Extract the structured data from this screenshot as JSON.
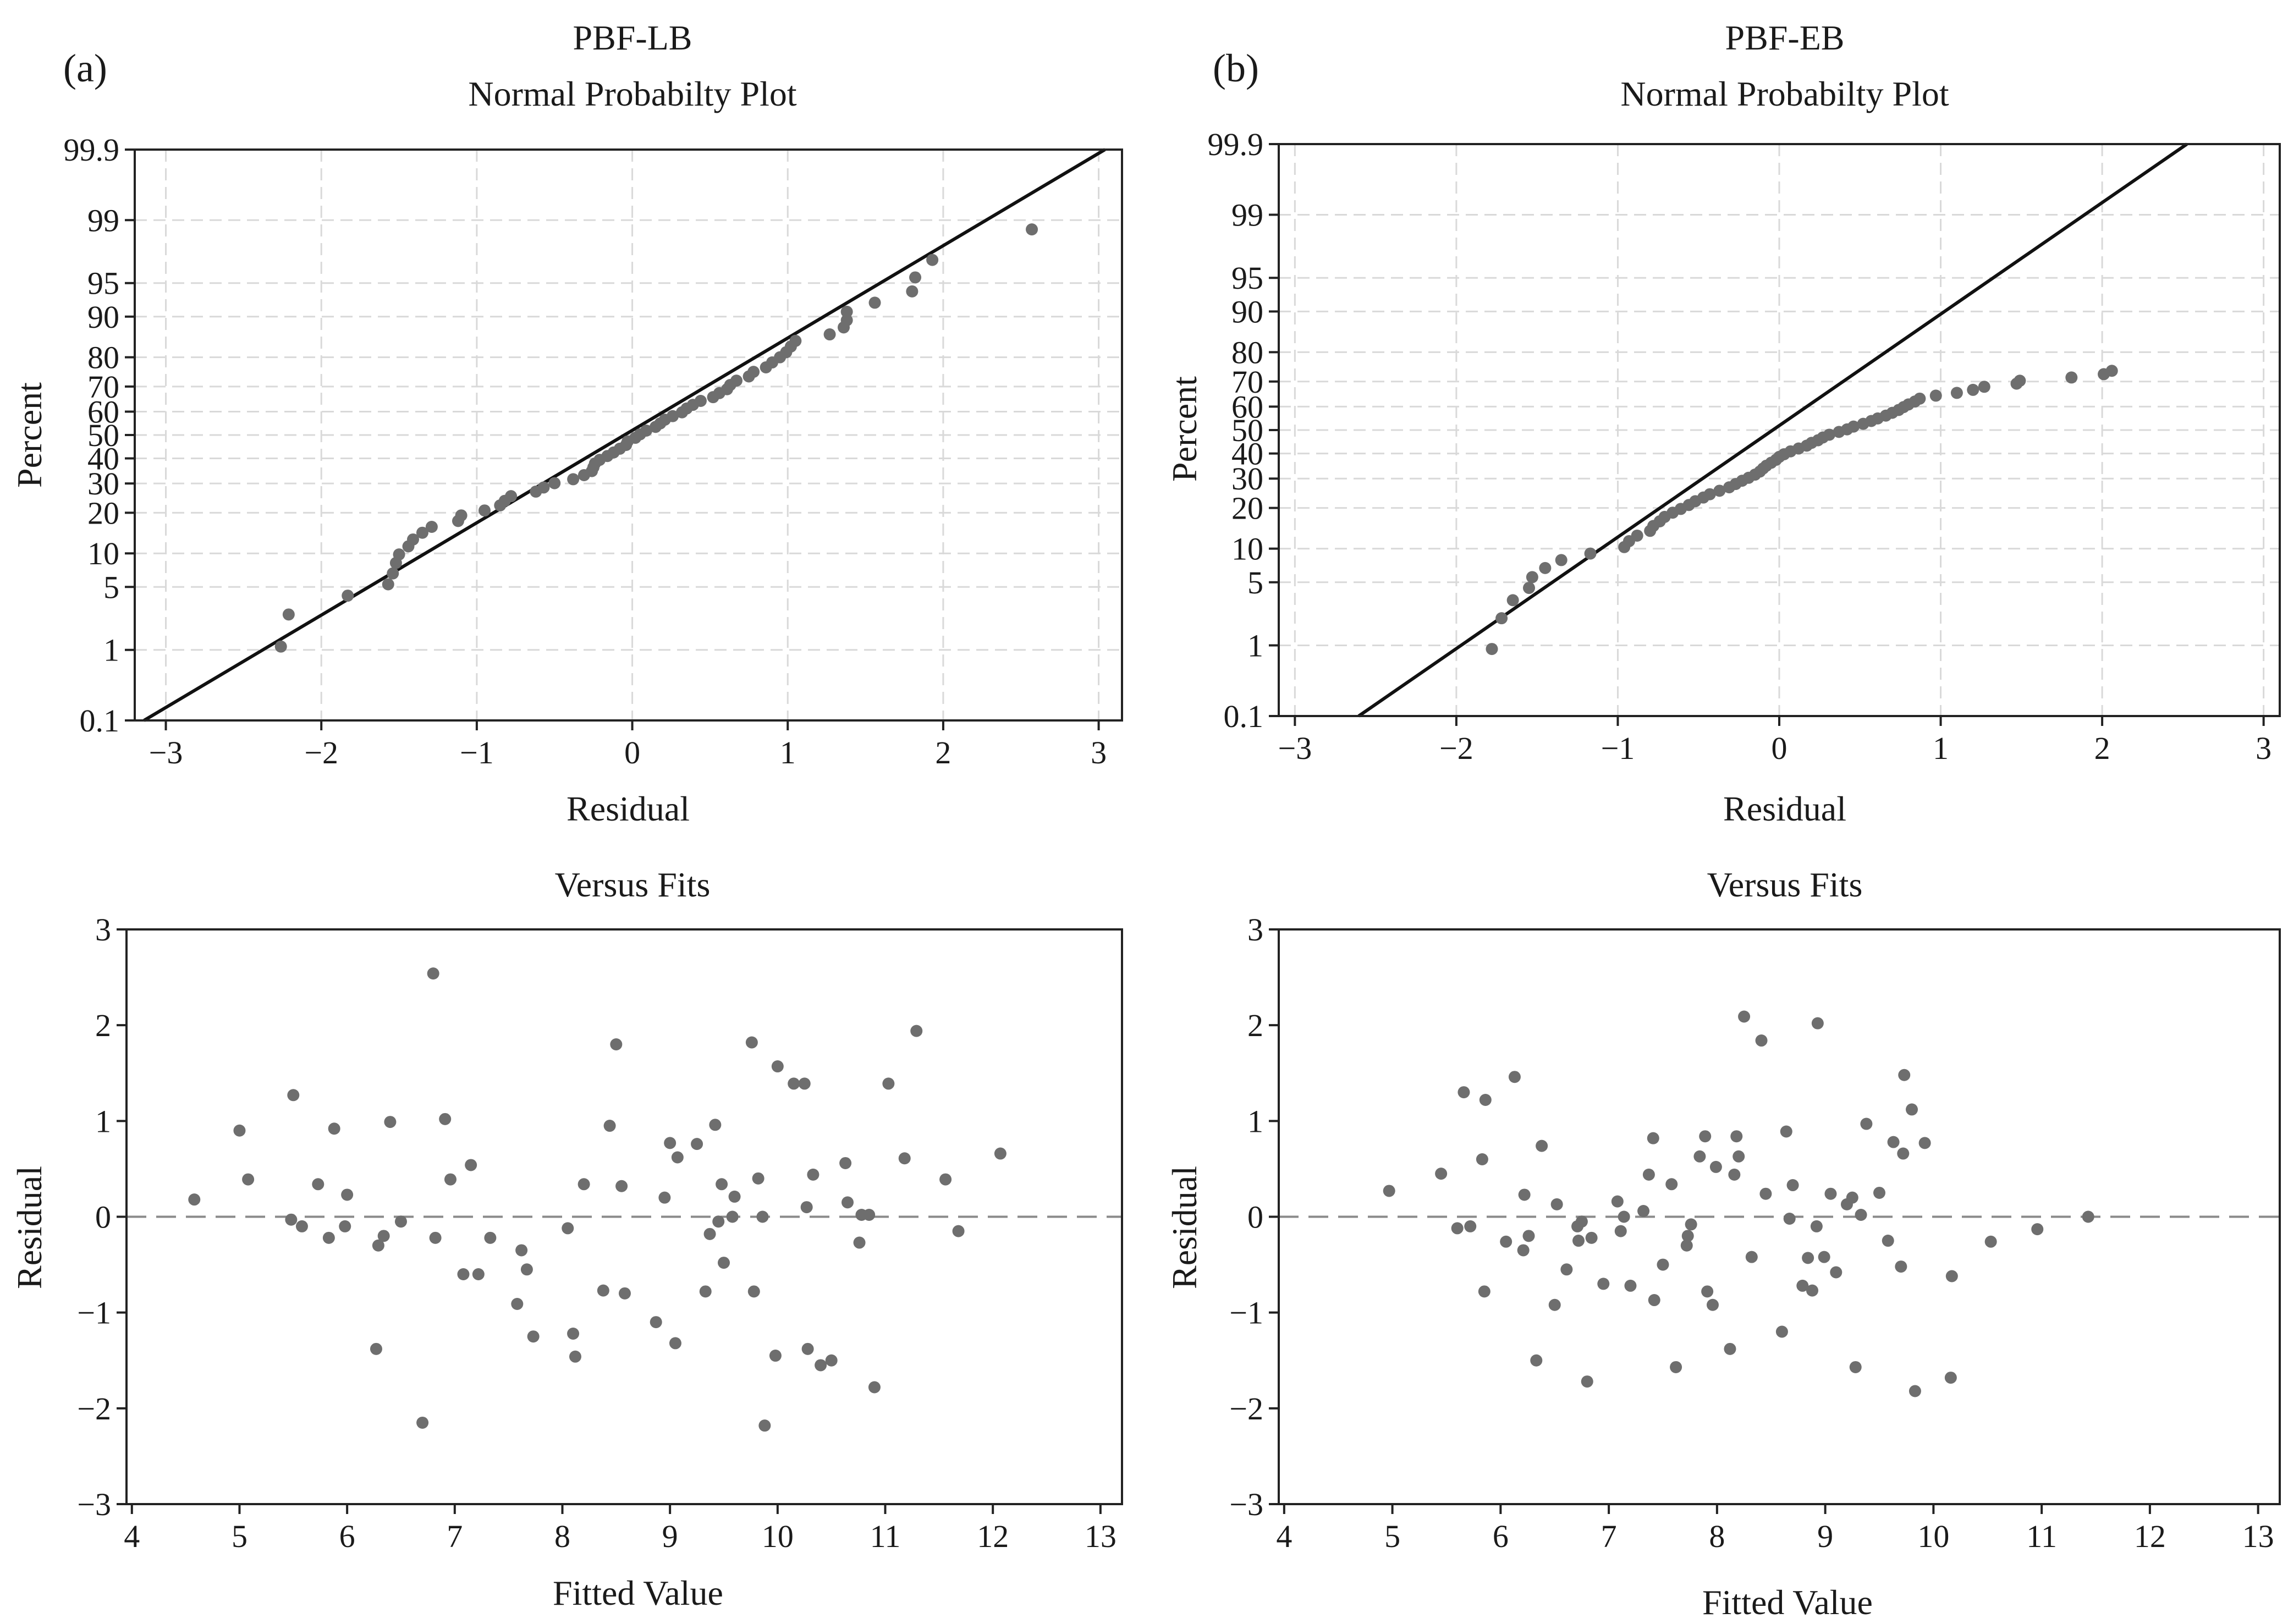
{
  "colors": {
    "point": "#6e6e6e",
    "line": "#111111",
    "grid": "#d9d9d9",
    "zeroline": "#8a8a8a"
  },
  "chart_data": [
    {
      "id": "a-prob",
      "type": "scatter",
      "panel_label": "(a)",
      "supertitle": "PBF-LB",
      "title": "Normal Probabilty Plot",
      "xlabel": "Residual",
      "ylabel": "Percent",
      "xlim": [
        -3.2,
        3.15
      ],
      "xticks": [
        -3,
        -2,
        -1,
        0,
        1,
        2,
        3
      ],
      "xtick_labels": [
        "−3",
        "−2",
        "−1",
        "0",
        "1",
        "2",
        "3"
      ],
      "yscale": "normal-probability",
      "ylim": [
        0.1,
        99.9
      ],
      "yticks": [
        0.1,
        1,
        5,
        10,
        20,
        30,
        40,
        50,
        60,
        70,
        80,
        90,
        95,
        99,
        99.9
      ],
      "ytick_labels": [
        "0.1",
        "1",
        "5",
        "10",
        "20",
        "30",
        "40",
        "50",
        "60",
        "70",
        "80",
        "90",
        "95",
        "99",
        "99.9"
      ],
      "grid": true,
      "fit_line": {
        "mean": -0.05,
        "sd": 1.0
      },
      "x": [
        -2.26,
        -2.21,
        -1.83,
        -1.57,
        -1.54,
        -1.52,
        -1.5,
        -1.44,
        -1.41,
        -1.35,
        -1.29,
        -1.12,
        -1.1,
        -0.95,
        -0.85,
        -0.82,
        -0.78,
        -0.62,
        -0.57,
        -0.5,
        -0.38,
        -0.31,
        -0.26,
        -0.25,
        -0.24,
        -0.21,
        -0.16,
        -0.12,
        -0.08,
        -0.04,
        -0.03,
        0.02,
        0.05,
        0.09,
        0.15,
        0.18,
        0.21,
        0.26,
        0.32,
        0.35,
        0.39,
        0.44,
        0.52,
        0.56,
        0.61,
        0.63,
        0.67,
        0.75,
        0.78,
        0.86,
        0.9,
        0.95,
        0.99,
        1.02,
        1.05,
        1.27,
        1.36,
        1.38,
        1.38,
        1.56,
        1.8,
        1.82,
        1.93,
        2.57
      ],
      "y": [
        1.1,
        2.6,
        4.1,
        5.3,
        6.7,
        8.3,
        9.8,
        11.4,
        12.9,
        14.5,
        16.0,
        17.6,
        19.2,
        20.7,
        22.3,
        23.8,
        25.4,
        27.0,
        28.5,
        30.1,
        31.6,
        33.2,
        34.8,
        36.3,
        37.9,
        39.4,
        41.0,
        42.5,
        44.1,
        45.7,
        47.2,
        48.8,
        50.3,
        51.9,
        53.5,
        55.0,
        56.6,
        58.1,
        59.7,
        61.3,
        62.8,
        64.4,
        65.9,
        67.5,
        69.0,
        70.6,
        72.2,
        73.7,
        75.3,
        76.8,
        78.4,
        80.0,
        81.5,
        83.1,
        84.6,
        86.2,
        87.8,
        89.3,
        90.9,
        92.4,
        94.0,
        95.6,
        97.1,
        98.7
      ]
    },
    {
      "id": "b-prob",
      "type": "scatter",
      "panel_label": "(b)",
      "supertitle": "PBF-EB",
      "title": "Normal Probabilty Plot",
      "xlabel": "Residual",
      "ylabel": "Percent",
      "xlim": [
        -3.1,
        3.1
      ],
      "xticks": [
        -3,
        -2,
        -1,
        0,
        1,
        2,
        3
      ],
      "xtick_labels": [
        "−3",
        "−2",
        "−1",
        "0",
        "1",
        "2",
        "3"
      ],
      "yscale": "normal-probability",
      "ylim": [
        0.1,
        99.9
      ],
      "yticks": [
        0.1,
        1,
        5,
        10,
        20,
        30,
        40,
        50,
        60,
        70,
        80,
        90,
        95,
        99,
        99.9
      ],
      "ytick_labels": [
        "0.1",
        "1",
        "5",
        "10",
        "20",
        "30",
        "40",
        "50",
        "60",
        "70",
        "80",
        "90",
        "95",
        "99",
        "99.9"
      ],
      "grid": true,
      "fit_line": {
        "mean": -0.04,
        "sd": 0.83
      },
      "x": [
        -1.78,
        -1.72,
        -1.65,
        -1.55,
        -1.53,
        -1.45,
        -1.35,
        -1.17,
        -0.96,
        -0.93,
        -0.88,
        -0.8,
        -0.78,
        -0.74,
        -0.71,
        -0.66,
        -0.61,
        -0.56,
        -0.52,
        -0.47,
        -0.43,
        -0.37,
        -0.31,
        -0.27,
        -0.23,
        -0.19,
        -0.15,
        -0.12,
        -0.1,
        -0.08,
        -0.05,
        -0.02,
        0.0,
        0.03,
        0.07,
        0.12,
        0.17,
        0.2,
        0.24,
        0.27,
        0.31,
        0.37,
        0.42,
        0.46,
        0.52,
        0.57,
        0.61,
        0.66,
        0.7,
        0.74,
        0.77,
        0.8,
        0.84,
        0.87,
        0.97,
        1.1,
        1.2,
        1.27,
        1.47,
        1.49,
        1.81,
        2.01,
        2.06
      ],
      "y": [
        0.9,
        2.1,
        3.3,
        4.4,
        5.6,
        6.8,
        8.0,
        9.1,
        10.3,
        11.5,
        12.7,
        13.8,
        15.0,
        16.2,
        17.4,
        18.6,
        19.7,
        20.9,
        22.1,
        23.3,
        24.4,
        25.6,
        26.8,
        28.0,
        29.2,
        30.3,
        31.5,
        32.7,
        33.9,
        35.0,
        36.2,
        37.4,
        38.6,
        39.7,
        40.9,
        42.1,
        43.3,
        44.5,
        45.6,
        46.8,
        48.0,
        49.2,
        50.3,
        51.5,
        52.7,
        53.9,
        55.0,
        56.2,
        57.4,
        58.6,
        59.8,
        60.9,
        62.1,
        63.3,
        64.5,
        65.6,
        66.8,
        68.0,
        69.2,
        70.3,
        71.5,
        72.7,
        73.9
      ]
    },
    {
      "id": "a-fits",
      "type": "scatter",
      "title": "Versus Fits",
      "xlabel": "Fitted Value",
      "ylabel": "Residual",
      "xlim": [
        3.95,
        13.2
      ],
      "ylim": [
        -3,
        3
      ],
      "xticks": [
        4,
        5,
        6,
        7,
        8,
        9,
        10,
        11,
        12,
        13
      ],
      "xtick_labels": [
        "4",
        "5",
        "6",
        "7",
        "8",
        "9",
        "10",
        "11",
        "12",
        "13"
      ],
      "yticks": [
        -3,
        -2,
        -1,
        0,
        1,
        2,
        3
      ],
      "ytick_labels": [
        "−3",
        "−2",
        "−1",
        "0",
        "1",
        "2",
        "3"
      ],
      "grid": false,
      "reference_line": 0,
      "x": [
        4.58,
        5.0,
        5.08,
        5.48,
        5.5,
        5.58,
        5.73,
        5.83,
        5.88,
        5.98,
        6.0,
        6.27,
        6.29,
        6.34,
        6.4,
        6.5,
        6.7,
        6.8,
        6.82,
        6.91,
        6.96,
        7.08,
        7.15,
        7.22,
        7.33,
        7.58,
        7.62,
        7.67,
        7.73,
        8.05,
        8.1,
        8.12,
        8.2,
        8.38,
        8.44,
        8.5,
        8.55,
        8.58,
        8.87,
        8.95,
        9.0,
        9.05,
        9.07,
        9.25,
        9.33,
        9.37,
        9.42,
        9.45,
        9.48,
        9.5,
        9.58,
        9.6,
        9.76,
        9.78,
        9.82,
        9.86,
        9.88,
        9.98,
        10.0,
        10.15,
        10.25,
        10.27,
        10.28,
        10.33,
        10.4,
        10.5,
        10.63,
        10.65,
        10.76,
        10.78,
        10.85,
        10.9,
        11.03,
        11.18,
        11.29,
        11.56,
        11.68,
        12.07
      ],
      "y": [
        0.18,
        0.9,
        0.39,
        -0.03,
        1.27,
        -0.1,
        0.34,
        -0.22,
        0.92,
        -0.1,
        0.23,
        -1.38,
        -0.3,
        -0.2,
        0.99,
        -0.05,
        -2.15,
        2.54,
        -0.22,
        1.02,
        0.39,
        -0.6,
        0.54,
        -0.6,
        -0.22,
        -0.91,
        -0.35,
        -0.55,
        -1.25,
        -0.12,
        -1.22,
        -1.46,
        0.34,
        -0.77,
        0.95,
        1.8,
        0.32,
        -0.8,
        -1.1,
        0.2,
        0.77,
        -1.32,
        0.62,
        0.76,
        -0.78,
        -0.18,
        0.96,
        -0.05,
        0.34,
        -0.48,
        0.0,
        0.21,
        1.82,
        -0.78,
        0.4,
        0.0,
        -2.18,
        -1.45,
        1.57,
        1.39,
        1.39,
        0.1,
        -1.38,
        0.44,
        -1.55,
        -1.5,
        0.56,
        0.15,
        -0.27,
        0.02,
        0.02,
        -1.78,
        1.39,
        0.61,
        1.94,
        0.39,
        -0.15,
        0.66
      ]
    },
    {
      "id": "b-fits",
      "type": "scatter",
      "title": "Versus Fits",
      "xlabel": "Fitted Value",
      "ylabel": "Residual",
      "xlim": [
        3.95,
        13.2
      ],
      "ylim": [
        -3,
        3
      ],
      "xticks": [
        4,
        5,
        6,
        7,
        8,
        9,
        10,
        11,
        12,
        13
      ],
      "xtick_labels": [
        "4",
        "5",
        "6",
        "7",
        "8",
        "9",
        "10",
        "11",
        "12",
        "13"
      ],
      "yticks": [
        -3,
        -2,
        -1,
        0,
        1,
        2,
        3
      ],
      "ytick_labels": [
        "−3",
        "−2",
        "−1",
        "0",
        "1",
        "2",
        "3"
      ],
      "grid": false,
      "reference_line": 0,
      "x": [
        4.97,
        5.45,
        5.6,
        5.66,
        5.72,
        5.83,
        5.85,
        5.86,
        6.05,
        6.13,
        6.21,
        6.22,
        6.26,
        6.33,
        6.38,
        6.5,
        6.52,
        6.61,
        6.71,
        6.72,
        6.75,
        6.8,
        6.84,
        6.95,
        7.08,
        7.11,
        7.14,
        7.2,
        7.32,
        7.37,
        7.41,
        7.42,
        7.5,
        7.58,
        7.62,
        7.72,
        7.73,
        7.76,
        7.84,
        7.89,
        7.91,
        7.96,
        7.99,
        8.12,
        8.16,
        8.18,
        8.2,
        8.25,
        8.32,
        8.41,
        8.45,
        8.6,
        8.64,
        8.67,
        8.7,
        8.79,
        8.84,
        8.88,
        8.92,
        8.93,
        8.99,
        9.05,
        9.1,
        9.2,
        9.25,
        9.28,
        9.33,
        9.38,
        9.5,
        9.58,
        9.63,
        9.7,
        9.72,
        9.73,
        9.8,
        9.83,
        9.92,
        10.16,
        10.17,
        10.53,
        10.96,
        11.43
      ],
      "y": [
        0.27,
        0.45,
        -0.12,
        1.3,
        -0.1,
        0.6,
        -0.78,
        1.22,
        -0.26,
        1.46,
        -0.35,
        0.23,
        -0.2,
        -1.5,
        0.74,
        -0.92,
        0.13,
        -0.55,
        -0.1,
        -0.25,
        -0.05,
        -1.72,
        -0.22,
        -0.7,
        0.16,
        -0.15,
        0.0,
        -0.72,
        0.06,
        0.44,
        0.82,
        -0.87,
        -0.5,
        0.34,
        -1.57,
        -0.3,
        -0.2,
        -0.08,
        0.63,
        0.84,
        -0.78,
        -0.92,
        0.52,
        -1.38,
        0.44,
        0.84,
        0.63,
        2.09,
        -0.42,
        1.84,
        0.24,
        -1.2,
        0.89,
        -0.02,
        0.33,
        -0.72,
        -0.43,
        -0.77,
        -0.1,
        2.02,
        -0.42,
        0.24,
        -0.58,
        0.13,
        0.2,
        -1.57,
        0.02,
        0.97,
        0.25,
        -0.25,
        0.78,
        -0.52,
        0.66,
        1.48,
        1.12,
        -1.82,
        0.77,
        -1.68,
        -0.62,
        -0.26,
        -0.13,
        0
      ]
    }
  ]
}
